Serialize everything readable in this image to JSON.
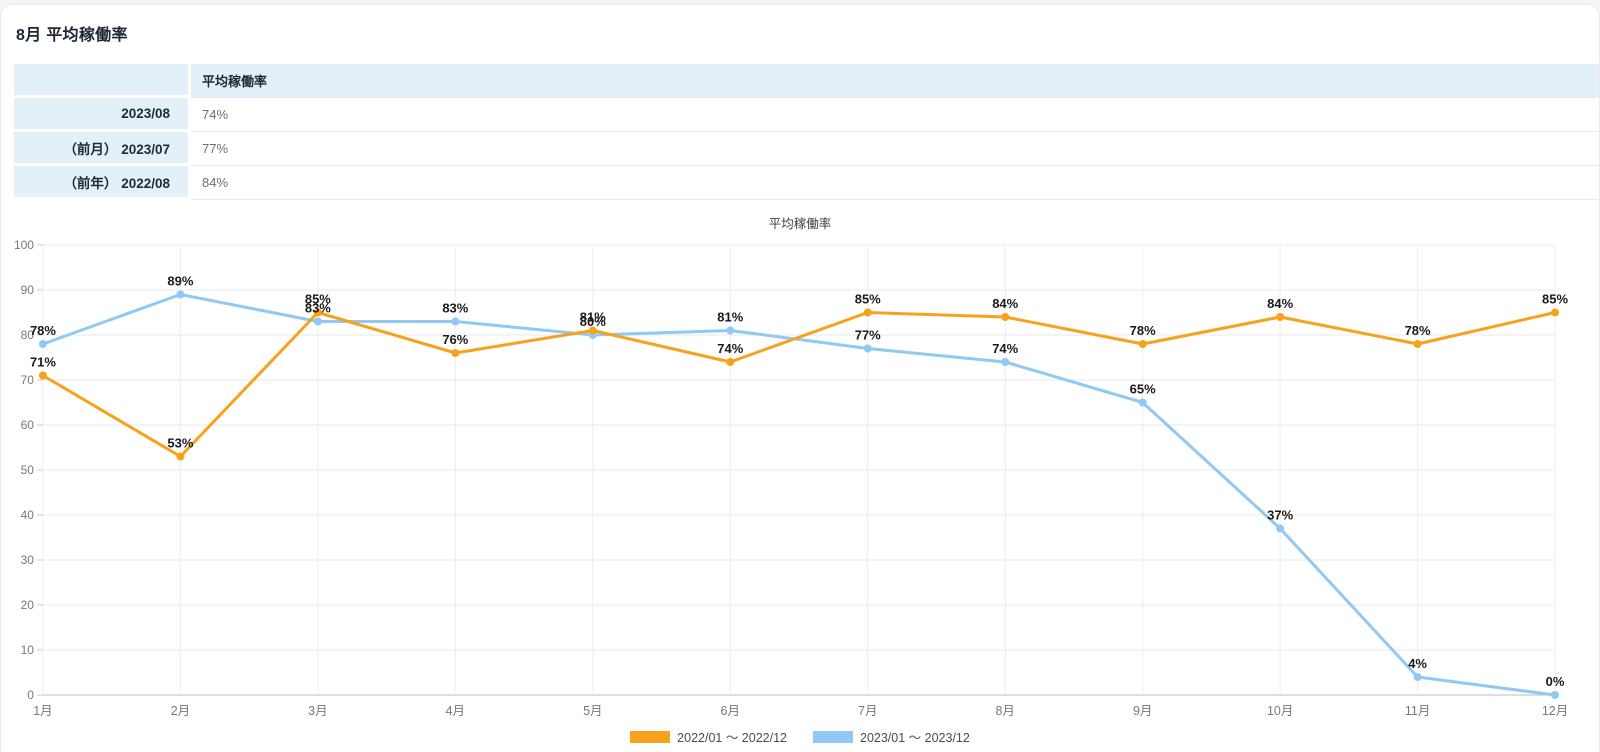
{
  "page": {
    "title": "8月 平均稼働率"
  },
  "table": {
    "header": "平均稼働率",
    "rows": [
      {
        "label": "2023/08",
        "value": "74%"
      },
      {
        "label": "（前月） 2023/07",
        "value": "77%"
      },
      {
        "label": "（前年） 2022/08",
        "value": "84%"
      }
    ]
  },
  "chart_data": {
    "type": "line",
    "title": "平均稼働率",
    "categories": [
      "1月",
      "2月",
      "3月",
      "4月",
      "5月",
      "6月",
      "7月",
      "8月",
      "9月",
      "10月",
      "11月",
      "12月"
    ],
    "series": [
      {
        "name": "2022/01 ～ 2022/12",
        "color": "#f7a11c",
        "values": [
          71,
          53,
          85,
          76,
          81,
          74,
          85,
          84,
          78,
          84,
          78,
          85
        ]
      },
      {
        "name": "2023/01 ～ 2023/12",
        "color": "#90c9f3",
        "values": [
          78,
          89,
          83,
          83,
          80,
          81,
          77,
          74,
          65,
          37,
          4,
          0
        ]
      }
    ],
    "point_label_suffix": "%",
    "xlabel": "",
    "ylabel": "",
    "ylim": [
      0,
      100
    ],
    "ytick_step": 10,
    "grid": true,
    "legend_position": "bottom"
  },
  "colors": {
    "grid_line": "#e9e9e9",
    "zero_line": "#babdbf",
    "axis_text": "#75787a",
    "point_label_text": "#1a1a1a"
  }
}
